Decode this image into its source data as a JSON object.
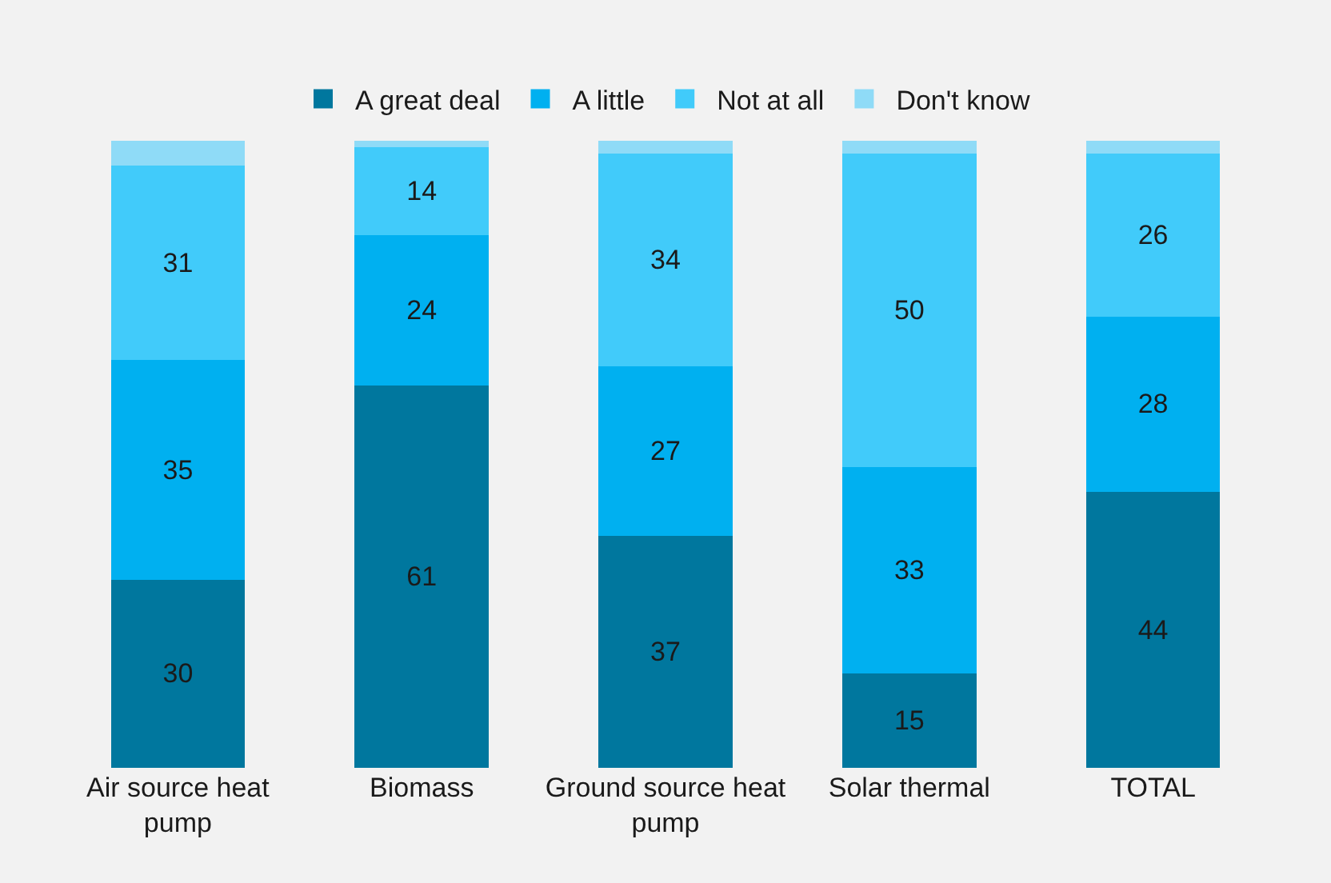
{
  "chart_data": {
    "type": "bar",
    "stacked": true,
    "legend": "top",
    "categories": [
      "Air source heat pump",
      "Biomass",
      "Ground source heat pump",
      "Solar thermal",
      "TOTAL"
    ],
    "series": [
      {
        "name": "A great deal",
        "color": "#00779e",
        "values": [
          30,
          61,
          37,
          15,
          44
        ],
        "value_labels": [
          "30",
          "61",
          "37",
          "15",
          "44"
        ]
      },
      {
        "name": "A little",
        "color": "#00b0f0",
        "values": [
          35,
          24,
          27,
          33,
          28
        ],
        "value_labels": [
          "35",
          "24",
          "27",
          "33",
          "28"
        ]
      },
      {
        "name": "Not at all",
        "color": "#41cbfa",
        "values": [
          31,
          14,
          34,
          50,
          26
        ],
        "value_labels": [
          "31",
          "14",
          "34",
          "50",
          "26"
        ]
      },
      {
        "name": "Don't know",
        "color": "#8fdbf7",
        "values": [
          4,
          1,
          2,
          2,
          2
        ],
        "value_labels": [
          null,
          null,
          null,
          null,
          null
        ]
      }
    ]
  }
}
